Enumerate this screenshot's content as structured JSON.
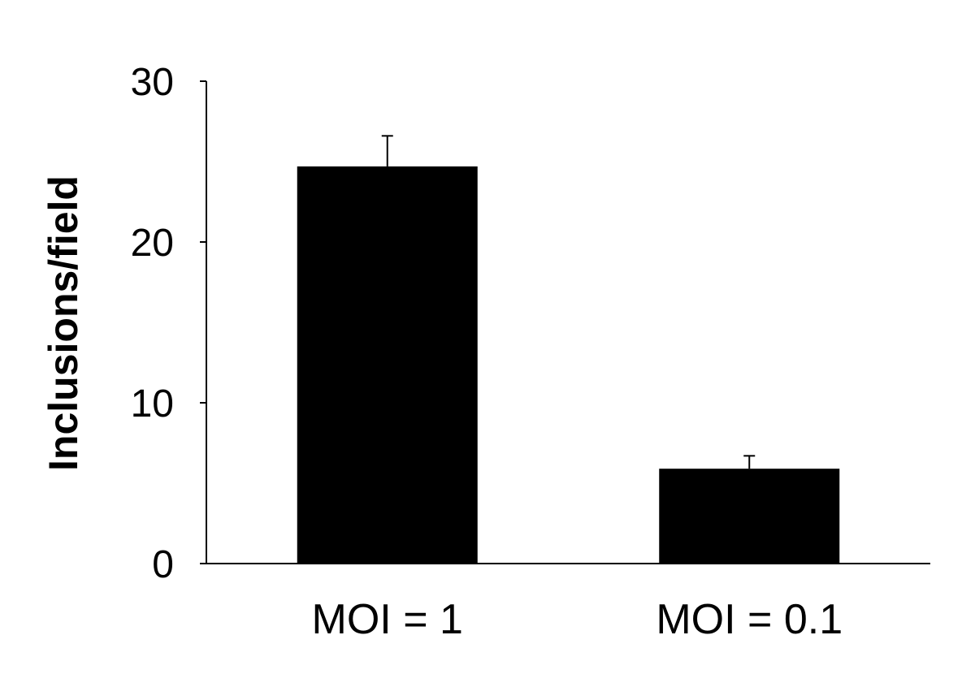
{
  "chart_data": {
    "type": "bar",
    "categories": [
      "MOI = 1",
      "MOI = 0.1"
    ],
    "values": [
      24.7,
      5.9
    ],
    "errors": [
      1.9,
      0.8
    ],
    "title": "",
    "xlabel": "",
    "ylabel": "Inclusions/field",
    "ylim": [
      0,
      30
    ],
    "yticks": [
      0,
      10,
      20,
      30
    ],
    "ytick_labels": [
      "0",
      "10",
      "20",
      "30"
    ],
    "grid": false,
    "legend": "none",
    "bar_color": "#000000",
    "axis_color": "#000000"
  }
}
